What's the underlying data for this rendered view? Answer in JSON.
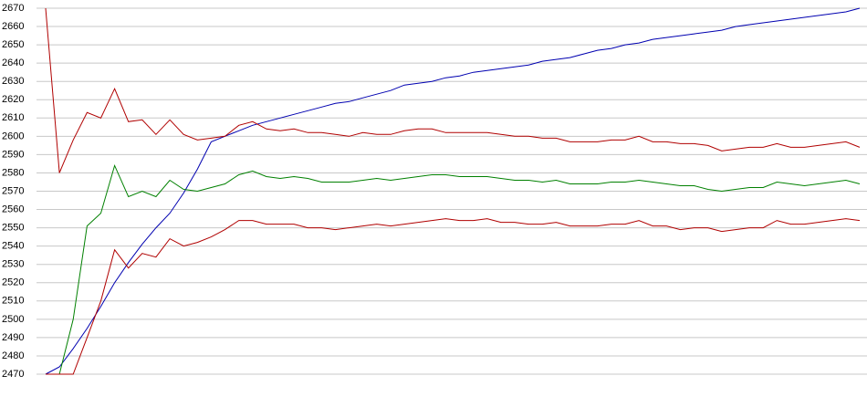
{
  "chart_data": {
    "type": "line",
    "categories": [
      null,
      null,
      null,
      null,
      null,
      null,
      null,
      null,
      null,
      null,
      null,
      null,
      null,
      null,
      null,
      null,
      null,
      null,
      null,
      null,
      null,
      null,
      null,
      null,
      null,
      null,
      null,
      null,
      null,
      null,
      null,
      null,
      null,
      null,
      null,
      null,
      null,
      null,
      null,
      null,
      null,
      null,
      null,
      null,
      null,
      null,
      null,
      null,
      null,
      null,
      null,
      null,
      null,
      null,
      null,
      null,
      null,
      null,
      null,
      null
    ],
    "series": [
      {
        "color": "#0000b0",
        "values": [
          2470,
          2474,
          2484,
          2495,
          2507,
          2520,
          2531,
          2541,
          2550,
          2558,
          2569,
          2582,
          2597,
          2600,
          2603,
          2606,
          2608,
          2610,
          2612,
          2614,
          2616,
          2618,
          2619,
          2621,
          2623,
          2625,
          2628,
          2629,
          2630,
          2632,
          2633,
          2635,
          2636,
          2637,
          2638,
          2639,
          2641,
          2642,
          2643,
          2645,
          2647,
          2648,
          2650,
          2651,
          2653,
          2654,
          2655,
          2656,
          2657,
          2658,
          2660,
          2661,
          2662,
          2663,
          2664,
          2665,
          2666,
          2667,
          2668,
          2670
        ]
      },
      {
        "color": "#b00000",
        "values": [
          2670,
          2580,
          2598,
          2613,
          2610,
          2626,
          2608,
          2609,
          2601,
          2609,
          2601,
          2598,
          2599,
          2600,
          2606,
          2608,
          2604,
          2603,
          2604,
          2602,
          2602,
          2601,
          2600,
          2602,
          2601,
          2601,
          2603,
          2604,
          2604,
          2602,
          2602,
          2602,
          2602,
          2601,
          2600,
          2600,
          2599,
          2599,
          2597,
          2597,
          2597,
          2598,
          2598,
          2600,
          2597,
          2597,
          2596,
          2596,
          2595,
          2592,
          2593,
          2594,
          2594,
          2596,
          2594,
          2594,
          2595,
          2596,
          2597,
          2594
        ]
      },
      {
        "color": "#008000",
        "values": [
          2470,
          2470,
          2500,
          2551,
          2558,
          2584,
          2567,
          2570,
          2567,
          2576,
          2571,
          2570,
          2572,
          2574,
          2579,
          2581,
          2578,
          2577,
          2578,
          2577,
          2575,
          2575,
          2575,
          2576,
          2577,
          2576,
          2577,
          2578,
          2579,
          2579,
          2578,
          2578,
          2578,
          2577,
          2576,
          2576,
          2575,
          2576,
          2574,
          2574,
          2574,
          2575,
          2575,
          2576,
          2575,
          2574,
          2573,
          2573,
          2571,
          2570,
          2571,
          2572,
          2572,
          2575,
          2574,
          2573,
          2574,
          2575,
          2576,
          2574
        ]
      },
      {
        "color": "#b00000",
        "values": [
          2470,
          2470,
          2470,
          2490,
          2510,
          2538,
          2528,
          2536,
          2534,
          2544,
          2540,
          2542,
          2545,
          2549,
          2554,
          2554,
          2552,
          2552,
          2552,
          2550,
          2550,
          2549,
          2550,
          2551,
          2552,
          2551,
          2552,
          2553,
          2554,
          2555,
          2554,
          2554,
          2555,
          2553,
          2553,
          2552,
          2552,
          2553,
          2551,
          2551,
          2551,
          2552,
          2552,
          2554,
          2551,
          2551,
          2549,
          2550,
          2550,
          2548,
          2549,
          2550,
          2550,
          2554,
          2552,
          2552,
          2553,
          2554,
          2555,
          2554
        ]
      }
    ],
    "ylim": [
      2470,
      2670
    ],
    "yticks": [
      2470,
      2480,
      2490,
      2500,
      2510,
      2520,
      2530,
      2540,
      2550,
      2560,
      2570,
      2580,
      2590,
      2600,
      2610,
      2620,
      2630,
      2640,
      2650,
      2660,
      2670
    ],
    "grid": true
  }
}
